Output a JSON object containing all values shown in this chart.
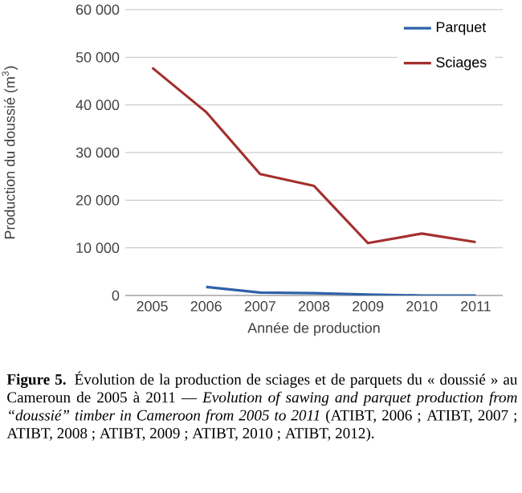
{
  "chart_data": {
    "type": "line",
    "xlabel": "Année de production",
    "ylabel": "Production du doussié (m$^{3}$)",
    "categories": [
      "2005",
      "2006",
      "2007",
      "2008",
      "2009",
      "2010",
      "2011"
    ],
    "series": [
      {
        "name": "Parquet",
        "color": "#2e62a8",
        "values": [
          null,
          1800,
          600,
          500,
          200,
          0,
          0
        ]
      },
      {
        "name": "Sciages",
        "color": "#a3302f",
        "values": [
          47800,
          38500,
          25500,
          23000,
          11000,
          13000,
          11200
        ]
      }
    ],
    "ylim": [
      0,
      60000
    ],
    "yticks": [
      {
        "value": 0,
        "label": "0"
      },
      {
        "value": 10000,
        "label": "10 000"
      },
      {
        "value": 20000,
        "label": "20 000"
      },
      {
        "value": 30000,
        "label": "30 000"
      },
      {
        "value": 40000,
        "label": "40 000"
      },
      {
        "value": 50000,
        "label": "50 000"
      },
      {
        "value": 60000,
        "label": "60 000"
      }
    ],
    "grid": "y",
    "legend": "top right",
    "marker": "none",
    "line_style": "solid",
    "annotations": [
      "**Figure 5.** Évolution de la production de sciages et de parquets du « doussié » au Cameroun de 2005 à 2011 — *Evolution of sawing and parquet production from “doussié” timber in Cameroon from 2005 to 2011* (ATIBT, 2006 ; ATIBT, 2007 ; ATIBT, 2008 ; ATIBT, 2009 ; ATIBT, 2010 ; ATIBT, 2012)."
    ]
  }
}
